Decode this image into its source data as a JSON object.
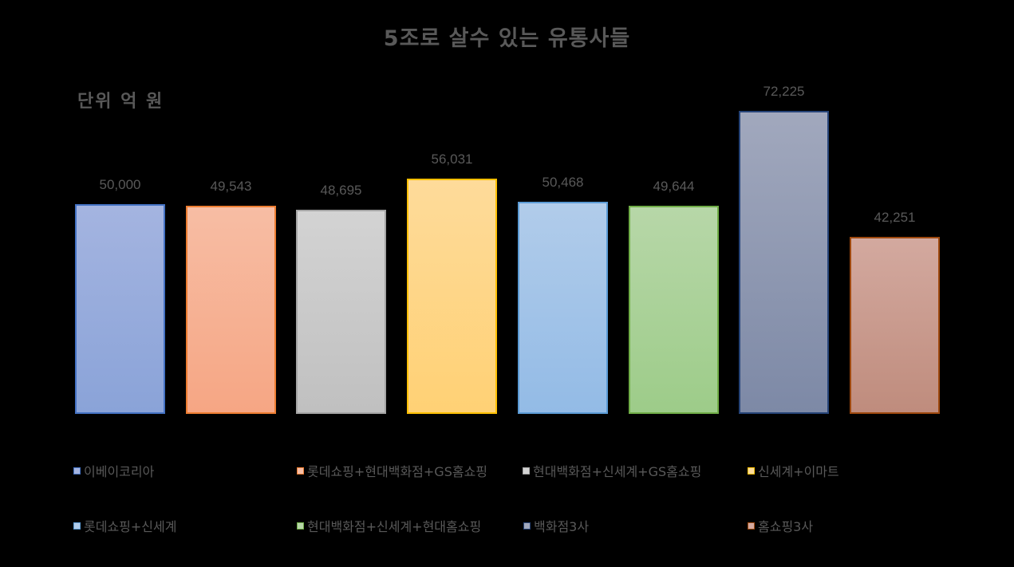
{
  "chart_data": {
    "type": "bar",
    "title": "5조로 살수 있는 유통사들",
    "subtitle": "단위 억 원",
    "xlabel": "",
    "ylabel": "",
    "ylim": [
      0,
      80000
    ],
    "grid": false,
    "legend_position": "bottom",
    "categories": [
      "이베이코리아",
      "롯데쇼핑+현대백화점+GS홈쇼핑",
      "현대백화점+신세계+GS홈쇼핑",
      "신세계+이마트",
      "롯데쇼핑+신세계",
      "현대백화점+신세계+현대홈쇼핑",
      "백화점3사",
      "홈쇼핑3사"
    ],
    "values": [
      50000,
      49543,
      48695,
      56031,
      50468,
      49644,
      72225,
      42251
    ],
    "value_labels": [
      "50,000",
      "49,543",
      "48,695",
      "56,031",
      "50,468",
      "49,644",
      "72,225",
      "42,251"
    ],
    "colors": {
      "fill_top": [
        "#a4b4e0",
        "#f7bda4",
        "#d3d3d3",
        "#fedb9a",
        "#b1ccea",
        "#b7d7a8",
        "#a1a8bd",
        "#d3a99f"
      ],
      "fill_bottom": [
        "#8aa3d8",
        "#f6a684",
        "#c0c0c0",
        "#ffd175",
        "#93bbe6",
        "#9dcc89",
        "#7d89a6",
        "#bf8c7d"
      ],
      "border": [
        "#4472c4",
        "#ed7d31",
        "#a5a5a5",
        "#ffc000",
        "#5b9bd5",
        "#70ad47",
        "#264478",
        "#9e480e"
      ]
    }
  },
  "legend": [
    {
      "label": "이베이코리아"
    },
    {
      "label": "롯데쇼핑+현대백화점+GS홈쇼핑"
    },
    {
      "label": "현대백화점+신세계+GS홈쇼핑"
    },
    {
      "label": "신세계+이마트"
    },
    {
      "label": "롯데쇼핑+신세계"
    },
    {
      "label": "현대백화점+신세계+현대홈쇼핑"
    },
    {
      "label": "백화점3사"
    },
    {
      "label": "홈쇼핑3사"
    }
  ]
}
